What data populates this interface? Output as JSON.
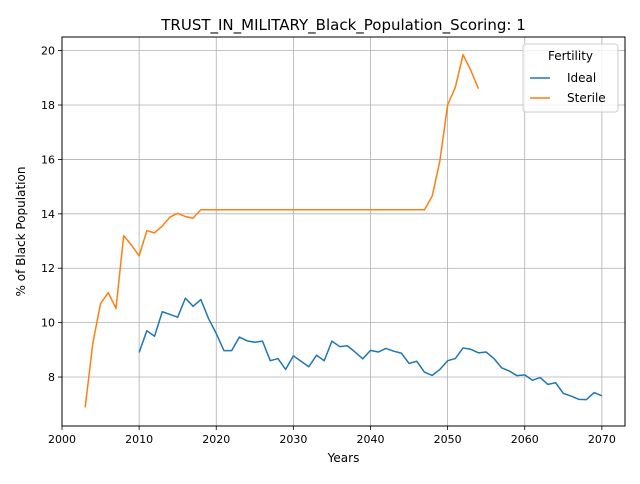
{
  "chart_data": {
    "type": "line",
    "title": "TRUST_IN_MILITARY_Black_Population_Scoring: 1",
    "xlabel": "Years",
    "ylabel": "% of Black Population",
    "xlim": [
      2000,
      2073
    ],
    "ylim": [
      6.2,
      20.5
    ],
    "xticks": [
      2000,
      2010,
      2020,
      2030,
      2040,
      2050,
      2060,
      2070
    ],
    "yticks": [
      8,
      10,
      12,
      14,
      16,
      18,
      20
    ],
    "grid": true,
    "legend": {
      "title": "Fertility",
      "placement": "top-right"
    },
    "series": [
      {
        "name": "Ideal",
        "color": "#1f77b4",
        "x": [
          2010,
          2011,
          2012,
          2013,
          2014,
          2015,
          2016,
          2017,
          2018,
          2019,
          2020,
          2021,
          2022,
          2023,
          2024,
          2025,
          2026,
          2027,
          2028,
          2029,
          2030,
          2031,
          2032,
          2033,
          2034,
          2035,
          2036,
          2037,
          2038,
          2039,
          2040,
          2041,
          2042,
          2043,
          2044,
          2045,
          2046,
          2047,
          2048,
          2049,
          2050,
          2051,
          2052,
          2053,
          2054,
          2055,
          2056,
          2057,
          2058,
          2059,
          2060,
          2061,
          2062,
          2063,
          2064,
          2065,
          2066,
          2067,
          2068,
          2069,
          2070
        ],
        "y": [
          8.9,
          9.7,
          9.5,
          10.4,
          10.3,
          10.2,
          10.9,
          10.6,
          10.85,
          10.15,
          9.6,
          8.97,
          8.97,
          9.47,
          9.33,
          9.28,
          9.32,
          8.6,
          8.68,
          8.28,
          8.78,
          8.58,
          8.38,
          8.8,
          8.6,
          9.32,
          9.12,
          9.15,
          8.92,
          8.67,
          8.98,
          8.92,
          9.05,
          8.95,
          8.88,
          8.5,
          8.58,
          8.18,
          8.06,
          8.28,
          8.6,
          8.68,
          9.07,
          9.02,
          8.89,
          8.92,
          8.68,
          8.34,
          8.22,
          8.05,
          8.08,
          7.88,
          7.98,
          7.73,
          7.79,
          7.4,
          7.3,
          7.18,
          7.17,
          7.43,
          7.31
        ]
      },
      {
        "name": "Sterile",
        "color": "#ff7f0e",
        "x": [
          2003,
          2004,
          2005,
          2006,
          2007,
          2008,
          2009,
          2010,
          2011,
          2012,
          2013,
          2014,
          2015,
          2016,
          2017,
          2018,
          2019,
          2020,
          2025,
          2030,
          2035,
          2040,
          2045,
          2047,
          2048,
          2049,
          2050,
          2051,
          2052,
          2053,
          2054
        ],
        "y": [
          6.88,
          9.25,
          10.7,
          11.1,
          10.52,
          13.2,
          12.85,
          12.45,
          13.38,
          13.3,
          13.55,
          13.88,
          14.02,
          13.9,
          13.84,
          14.15,
          14.15,
          14.15,
          14.15,
          14.15,
          14.15,
          14.15,
          14.15,
          14.15,
          14.65,
          15.95,
          18.0,
          18.65,
          19.85,
          19.28,
          18.6
        ]
      }
    ]
  }
}
